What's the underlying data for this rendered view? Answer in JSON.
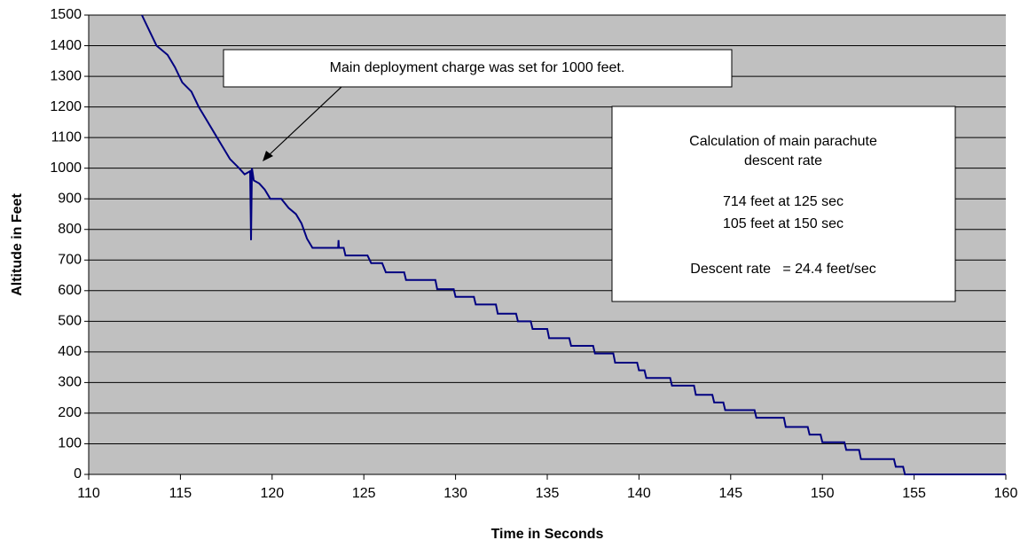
{
  "chart_data": {
    "type": "line",
    "xlabel": "Time in Seconds",
    "ylabel": "Altitude in Feet",
    "xlim": [
      110,
      160
    ],
    "ylim": [
      0,
      1500
    ],
    "xticks": [
      110,
      115,
      120,
      125,
      130,
      135,
      140,
      145,
      150,
      155,
      160
    ],
    "yticks": [
      0,
      100,
      200,
      300,
      400,
      500,
      600,
      700,
      800,
      900,
      1000,
      1100,
      1200,
      1300,
      1400,
      1500
    ],
    "grid": true,
    "background": "#c0c0c0",
    "series": [
      {
        "name": null,
        "color": "#000080",
        "x": [
          112.9,
          113.3,
          113.7,
          114.3,
          114.7,
          115.1,
          115.6,
          116,
          116.4,
          116.9,
          117.3,
          117.7,
          118.2,
          118.5,
          118.8,
          118.85,
          118.9,
          119.0,
          119.3,
          119.6,
          119.9,
          120.5,
          120.9,
          121.3,
          121.6,
          121.9,
          122.2,
          123.6,
          123.62,
          123.64,
          123.9,
          124,
          125.2,
          125.4,
          126,
          126.2,
          127.2,
          127.3,
          128.9,
          129,
          129.9,
          130,
          131.0,
          131.1,
          132.2,
          132.3,
          133.3,
          133.4,
          134.1,
          134.2,
          135,
          135.1,
          136.2,
          136.3,
          137.5,
          137.6,
          138.6,
          138.7,
          139.9,
          140,
          140.3,
          140.4,
          141.7,
          141.8,
          143,
          143.1,
          144,
          144.1,
          144.6,
          144.7,
          146.3,
          146.4,
          147.9,
          148,
          149.2,
          149.3,
          149.9,
          150,
          151.2,
          151.3,
          152,
          152.1,
          153.9,
          154,
          154.4,
          154.5,
          160
        ],
        "values": [
          1500,
          1450,
          1400,
          1370,
          1330,
          1280,
          1250,
          1200,
          1160,
          1110,
          1070,
          1030,
          1000,
          980,
          990,
          765,
          1000,
          960,
          950,
          930,
          900,
          900,
          870,
          850,
          820,
          770,
          740,
          740,
          765,
          740,
          740,
          715,
          715,
          690,
          690,
          660,
          660,
          635,
          635,
          605,
          605,
          580,
          580,
          555,
          555,
          525,
          525,
          500,
          500,
          475,
          475,
          445,
          445,
          420,
          420,
          395,
          395,
          365,
          365,
          340,
          340,
          315,
          315,
          290,
          290,
          260,
          260,
          235,
          235,
          210,
          210,
          185,
          185,
          155,
          155,
          130,
          130,
          105,
          105,
          80,
          80,
          50,
          50,
          25,
          25,
          0,
          0
        ]
      }
    ],
    "annotations": [
      {
        "text": "Main deployment charge was set for 1000 feet."
      },
      {
        "lines": [
          "Calculation of  main parachute",
          "descent rate",
          "714 feet at 125 sec",
          " 105 feet at 150 sec",
          "Descent rate   = 24.4 feet/sec"
        ]
      }
    ]
  }
}
